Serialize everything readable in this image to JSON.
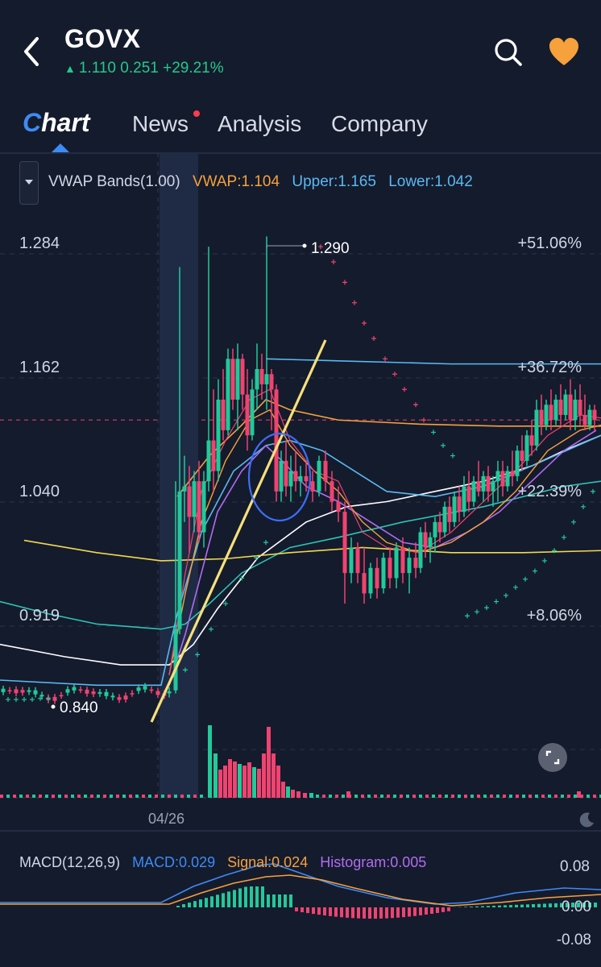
{
  "header": {
    "ticker": "GOVX",
    "quote_arrow": "▲",
    "price": "1.110",
    "change": "0.251",
    "change_pct": "+29.21%",
    "icons": [
      "back-chevron-icon",
      "search-icon",
      "heart-icon"
    ]
  },
  "tabs": {
    "chart_first": "C",
    "chart_rest": "hart",
    "news": "News",
    "analysis": "Analysis",
    "company": "Company"
  },
  "indicator": {
    "name": "VWAP Bands(1.00)",
    "vwap": "VWAP:1.104",
    "upper": "Upper:1.165",
    "lower": "Lower:1.042"
  },
  "price_axis": {
    "ticks": [
      "1.284",
      "1.162",
      "1.040",
      "0.919"
    ],
    "pct_ticks": [
      "+51.06%",
      "+36.72%",
      "+22.39%",
      "+8.06%"
    ]
  },
  "annotations": {
    "high_label": "1.290",
    "low_label": "0.840"
  },
  "date_label": "04/26",
  "macd": {
    "name": "MACD(12,26,9)",
    "macd": "MACD:0.029",
    "signal": "Signal:0.024",
    "histogram": "Histogram:0.005",
    "ticks": [
      "0.08",
      "0.00",
      "-0.08"
    ]
  },
  "colors": {
    "up": "#22c99a",
    "down": "#f0436f",
    "vwap": "#f6a13b",
    "upper": "#5ab8f0",
    "lower": "#5ab8f0",
    "macd_line": "#3d8bf5",
    "signal_line": "#f6a13b",
    "histogram": "#b26cf0",
    "accent": "#3d8bf5",
    "favorite": "#f6a13b"
  },
  "chart_data": {
    "type": "candlestick",
    "y_ticks": [
      1.284,
      1.162,
      1.04,
      0.919
    ],
    "ylim": [
      0.82,
      1.3
    ],
    "high": 1.29,
    "low": 0.84,
    "last": 1.11,
    "vwap": 1.104,
    "upper_band": 1.165,
    "lower_band": 1.042,
    "macd_ticks": [
      0.08,
      0.0,
      -0.08
    ],
    "macd": 0.029,
    "signal": 0.024,
    "histogram": 0.005
  }
}
